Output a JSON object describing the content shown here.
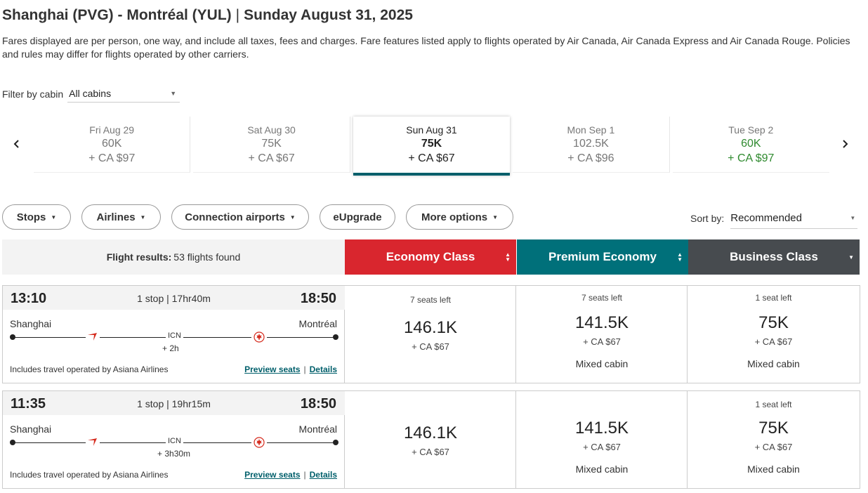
{
  "header": {
    "route": "Shanghai (PVG) - Montréal (YUL)",
    "separator": "|",
    "date": "Sunday August 31, 2025",
    "disclaimer": "Fares displayed are per person, one way, and include all taxes, fees and charges. Fare features listed apply to flights operated by Air Canada, Air Canada Express and Air Canada Rouge. Policies and rules may differ for flights operated by other carriers."
  },
  "filter": {
    "label": "Filter by cabin",
    "value": "All cabins"
  },
  "dates": [
    {
      "day": "Fri Aug 29",
      "points": "60K",
      "fare": "+ CA $97"
    },
    {
      "day": "Sat Aug 30",
      "points": "75K",
      "fare": "+ CA $67"
    },
    {
      "day": "Sun Aug 31",
      "points": "75K",
      "fare": "+ CA $67"
    },
    {
      "day": "Mon Sep 1",
      "points": "102.5K",
      "fare": "+ CA $96"
    },
    {
      "day": "Tue Sep 2",
      "points": "60K",
      "fare": "+ CA $97"
    }
  ],
  "filters": {
    "stops": "Stops",
    "airlines": "Airlines",
    "connection": "Connection airports",
    "eupgrade": "eUpgrade",
    "more": "More options"
  },
  "sort": {
    "label": "Sort by:",
    "value": "Recommended"
  },
  "results": {
    "label": "Flight results:",
    "count": "53 flights found"
  },
  "cabins": {
    "economy": "Economy Class",
    "premium": "Premium Economy",
    "business": "Business Class"
  },
  "colors": {
    "economy": "#d9262e",
    "premium": "#00707a",
    "business": "#474b4f",
    "accent": "#005f6b",
    "green": "#2f8a2f"
  },
  "flights": [
    {
      "depart": "13:10",
      "arrive": "18:50",
      "stops": "1 stop | 17hr40m",
      "origin": "Shanghai",
      "destination": "Montréal",
      "via": "ICN",
      "layover": "+ 2h",
      "operated": "Includes travel operated by Asiana Airlines",
      "preview": "Preview seats",
      "pipe": "|",
      "details": "Details",
      "economy": {
        "seats": "7 seats left",
        "points": "146.1K",
        "cash": "+ CA $67"
      },
      "premium": {
        "seats": "7 seats left",
        "points": "141.5K",
        "cash": "+ CA $67",
        "note": "Mixed cabin"
      },
      "business": {
        "seats": "1 seat left",
        "points": "75K",
        "cash": "+ CA $67",
        "note": "Mixed cabin"
      }
    },
    {
      "depart": "11:35",
      "arrive": "18:50",
      "stops": "1 stop | 19hr15m",
      "origin": "Shanghai",
      "destination": "Montréal",
      "via": "ICN",
      "layover": "+ 3h30m",
      "operated": "Includes travel operated by Asiana Airlines",
      "preview": "Preview seats",
      "pipe": "|",
      "details": "Details",
      "economy": {
        "points": "146.1K",
        "cash": "+ CA $67"
      },
      "premium": {
        "points": "141.5K",
        "cash": "+ CA $67",
        "note": "Mixed cabin"
      },
      "business": {
        "seats": "1 seat left",
        "points": "75K",
        "cash": "+ CA $67",
        "note": "Mixed cabin"
      }
    }
  ]
}
